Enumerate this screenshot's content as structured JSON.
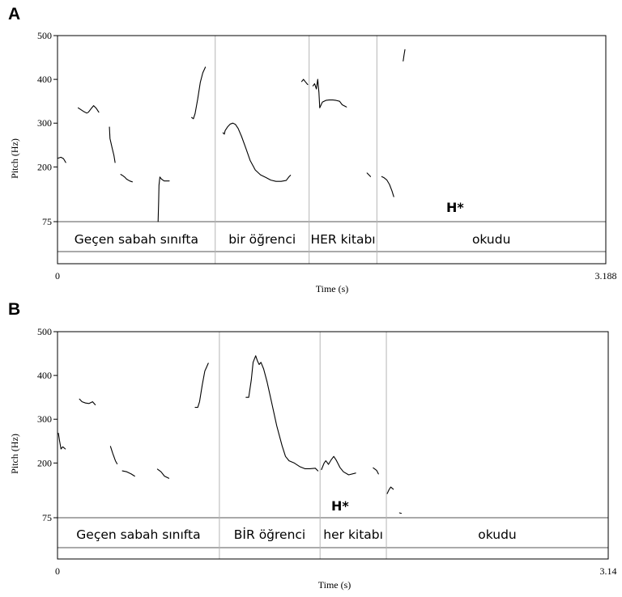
{
  "chart_data": [
    {
      "type": "line",
      "panel_label": "A",
      "xlabel": "Time (s)",
      "ylabel": "Pitch (Hz)",
      "xlim": [
        0,
        3.188
      ],
      "x_ticks": [
        "0",
        "3.188"
      ],
      "y_ticks": [
        {
          "value": 500,
          "label": "500"
        },
        {
          "value": 400,
          "label": "400"
        },
        {
          "value": 300,
          "label": "300"
        },
        {
          "value": 200,
          "label": "200"
        },
        {
          "value": 75,
          "label": "75"
        }
      ],
      "boundaries": [
        0,
        0.917,
        1.463,
        1.857,
        3.188
      ],
      "words": [
        {
          "start": 0,
          "end": 0.917,
          "text": "Geçen sabah sınıfta"
        },
        {
          "start": 0.917,
          "end": 1.463,
          "text": "bir öğrenci"
        },
        {
          "start": 1.463,
          "end": 1.857,
          "text": "HER kitabı"
        },
        {
          "start": 1.857,
          "end": 3.188,
          "text": "okudu"
        }
      ],
      "annotation": {
        "text": "H*",
        "x": 1.57,
        "y": 93
      },
      "series": [
        {
          "points": [
            [
              0.004,
              220
            ],
            [
              0.02,
              222
            ],
            [
              0.035,
              219
            ],
            [
              0.048,
              210
            ]
          ]
        },
        {
          "points": [
            [
              0.12,
              335
            ],
            [
              0.15,
              327
            ],
            [
              0.17,
              323
            ],
            [
              0.18,
              325
            ],
            [
              0.195,
              333
            ],
            [
              0.21,
              340
            ],
            [
              0.225,
              334
            ],
            [
              0.24,
              325
            ]
          ]
        },
        {
          "points": [
            [
              0.302,
              291
            ],
            [
              0.305,
              265
            ],
            [
              0.318,
              243
            ],
            [
              0.328,
              226
            ],
            [
              0.335,
              210
            ]
          ]
        },
        {
          "points": [
            [
              0.368,
              183
            ],
            [
              0.38,
              180
            ],
            [
              0.39,
              177
            ],
            [
              0.402,
              172
            ],
            [
              0.42,
              168
            ],
            [
              0.435,
              166
            ]
          ]
        },
        {
          "points": [
            [
              0.585,
              75
            ],
            [
              0.588,
              122
            ],
            [
              0.59,
              158
            ],
            [
              0.595,
              177
            ],
            [
              0.605,
              172
            ],
            [
              0.62,
              168
            ],
            [
              0.64,
              168
            ],
            [
              0.65,
              168
            ]
          ]
        },
        {
          "points": [
            [
              0.78,
              313
            ],
            [
              0.79,
              310
            ],
            [
              0.8,
              322
            ],
            [
              0.815,
              355
            ],
            [
              0.83,
              393
            ],
            [
              0.845,
              415
            ],
            [
              0.86,
              428
            ]
          ]
        },
        {
          "points": [
            [
              0.962,
              278
            ],
            [
              0.97,
              275
            ],
            [
              0.975,
              283
            ],
            [
              0.99,
              292
            ],
            [
              1.005,
              298
            ],
            [
              1.02,
              300
            ],
            [
              1.035,
              297
            ],
            [
              1.05,
              288
            ],
            [
              1.07,
              270
            ],
            [
              1.095,
              243
            ],
            [
              1.12,
              215
            ],
            [
              1.15,
              193
            ],
            [
              1.18,
              182
            ],
            [
              1.21,
              176
            ],
            [
              1.24,
              170
            ],
            [
              1.27,
              167
            ],
            [
              1.3,
              167
            ],
            [
              1.33,
              169
            ],
            [
              1.345,
              177
            ],
            [
              1.355,
              181
            ]
          ]
        },
        {
          "points": [
            [
              1.42,
              395
            ],
            [
              1.43,
              400
            ],
            [
              1.44,
              395
            ],
            [
              1.455,
              388
            ]
          ]
        },
        {
          "points": [
            [
              1.485,
              385
            ],
            [
              1.495,
              390
            ],
            [
              1.505,
              378
            ],
            [
              1.513,
              400
            ],
            [
              1.52,
              370
            ],
            [
              1.525,
              335
            ],
            [
              1.54,
              348
            ],
            [
              1.56,
              352
            ],
            [
              1.58,
              353
            ],
            [
              1.6,
              353
            ],
            [
              1.62,
              352
            ],
            [
              1.64,
              350
            ],
            [
              1.655,
              342
            ],
            [
              1.68,
              337
            ]
          ]
        },
        {
          "points": [
            [
              1.8,
              186
            ],
            [
              1.82,
              178
            ]
          ]
        },
        {
          "points": [
            [
              1.885,
              178
            ],
            [
              1.9,
              175
            ],
            [
              1.915,
              170
            ],
            [
              1.93,
              160
            ],
            [
              1.945,
              145
            ],
            [
              1.955,
              132
            ]
          ]
        },
        {
          "points": [
            [
              2.01,
              442
            ],
            [
              2.015,
              456
            ],
            [
              2.02,
              468
            ]
          ]
        }
      ]
    },
    {
      "type": "line",
      "panel_label": "B",
      "xlabel": "Time (s)",
      "ylabel": "Pitch (Hz)",
      "xlim": [
        0,
        3.14
      ],
      "x_ticks": [
        "0",
        "3.14"
      ],
      "y_ticks": [
        {
          "value": 500,
          "label": "500"
        },
        {
          "value": 400,
          "label": "400"
        },
        {
          "value": 300,
          "label": "300"
        },
        {
          "value": 200,
          "label": "200"
        },
        {
          "value": 75,
          "label": "75"
        }
      ],
      "boundaries": [
        0,
        0.923,
        1.497,
        1.875,
        3.14
      ],
      "words": [
        {
          "start": 0,
          "end": 0.923,
          "text": "Geçen sabah sınıfta"
        },
        {
          "start": 0.923,
          "end": 1.497,
          "text": "BİR öğrenci"
        },
        {
          "start": 1.497,
          "end": 1.875,
          "text": "her kitabı"
        },
        {
          "start": 1.875,
          "end": 3.14,
          "text": "okudu"
        }
      ],
      "annotation": {
        "text": "H*",
        "x": 1.07,
        "y": 90
      },
      "series": [
        {
          "points": [
            [
              0.005,
              268
            ],
            [
              0.012,
              250
            ],
            [
              0.02,
              232
            ],
            [
              0.03,
              237
            ],
            [
              0.045,
              232
            ]
          ]
        },
        {
          "points": [
            [
              0.125,
              346
            ],
            [
              0.14,
              340
            ],
            [
              0.16,
              337
            ],
            [
              0.18,
              336
            ],
            [
              0.2,
              340
            ],
            [
              0.215,
              333
            ]
          ]
        },
        {
          "points": [
            [
              0.302,
              238
            ],
            [
              0.315,
              222
            ],
            [
              0.33,
              205
            ],
            [
              0.34,
              198
            ]
          ]
        },
        {
          "points": [
            [
              0.37,
              182
            ],
            [
              0.395,
              180
            ],
            [
              0.42,
              175
            ],
            [
              0.44,
              170
            ]
          ]
        },
        {
          "points": [
            [
              0.57,
              186
            ],
            [
              0.59,
              180
            ],
            [
              0.61,
              170
            ],
            [
              0.635,
              165
            ]
          ]
        },
        {
          "points": [
            [
              0.785,
              327
            ],
            [
              0.8,
              327
            ],
            [
              0.81,
              340
            ],
            [
              0.825,
              378
            ],
            [
              0.84,
              410
            ],
            [
              0.86,
              428
            ]
          ]
        },
        {
          "points": [
            [
              1.075,
              350
            ],
            [
              1.09,
              350
            ],
            [
              1.105,
              390
            ],
            [
              1.115,
              430
            ],
            [
              1.13,
              445
            ],
            [
              1.14,
              433
            ],
            [
              1.15,
              425
            ],
            [
              1.16,
              430
            ],
            [
              1.175,
              415
            ],
            [
              1.195,
              385
            ],
            [
              1.22,
              340
            ],
            [
              1.25,
              285
            ],
            [
              1.28,
              240
            ],
            [
              1.3,
              215
            ],
            [
              1.32,
              205
            ],
            [
              1.35,
              200
            ],
            [
              1.38,
              192
            ],
            [
              1.41,
              187
            ],
            [
              1.44,
              187
            ],
            [
              1.47,
              188
            ],
            [
              1.485,
              182
            ]
          ]
        },
        {
          "points": [
            [
              1.505,
              185
            ],
            [
              1.52,
              200
            ],
            [
              1.53,
              205
            ],
            [
              1.545,
              197
            ],
            [
              1.56,
              207
            ],
            [
              1.575,
              215
            ],
            [
              1.59,
              206
            ],
            [
              1.61,
              190
            ],
            [
              1.63,
              180
            ],
            [
              1.66,
              173
            ],
            [
              1.7,
              177
            ]
          ]
        },
        {
          "points": [
            [
              1.8,
              189
            ],
            [
              1.82,
              183
            ],
            [
              1.83,
              175
            ]
          ]
        },
        {
          "points": [
            [
              1.88,
              130
            ],
            [
              1.89,
              139
            ],
            [
              1.9,
              145
            ],
            [
              1.915,
              140
            ]
          ]
        },
        {
          "points": [
            [
              1.95,
              86
            ],
            [
              1.96,
              85
            ]
          ]
        }
      ]
    }
  ]
}
